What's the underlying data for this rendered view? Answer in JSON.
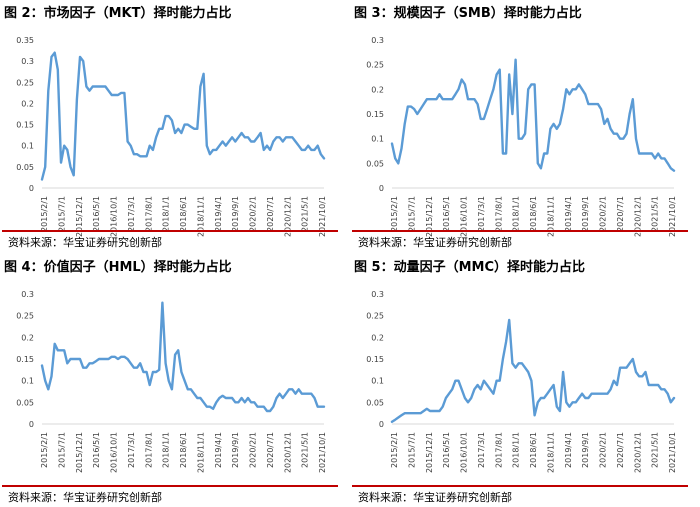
{
  "colors": {
    "line": "#5b9bd5",
    "rule": "#c00000",
    "axis": "#d9d9d9",
    "text": "#404040"
  },
  "chart_data": [
    {
      "type": "line",
      "title": "图 2：市场因子（MKT）择时能力占比",
      "source": "资料来源：华宝证券研究创新部",
      "ylim": [
        0,
        0.35
      ],
      "yticks": [
        "0",
        "0.05",
        "0.1",
        "0.15",
        "0.2",
        "0.25",
        "0.3",
        "0.35"
      ],
      "xticks": [
        "2015/2/1",
        "2015/7/1",
        "2015/12/1",
        "2016/5/1",
        "2016/10/1",
        "2017/3/1",
        "2017/8/1",
        "2018/1/1",
        "2018/6/1",
        "2018/11/1",
        "2019/4/1",
        "2019/9/1",
        "2020/2/1",
        "2020/7/1",
        "2020/12/1",
        "2021/5/1",
        "2021/10/1"
      ],
      "series": [
        {
          "values": [
            0.02,
            0.05,
            0.23,
            0.31,
            0.32,
            0.28,
            0.06,
            0.1,
            0.09,
            0.05,
            0.03,
            0.21,
            0.31,
            0.3,
            0.24,
            0.23,
            0.24,
            0.24,
            0.24,
            0.24,
            0.24,
            0.23,
            0.22,
            0.22,
            0.22,
            0.225,
            0.225,
            0.11,
            0.1,
            0.08,
            0.08,
            0.075,
            0.075,
            0.075,
            0.1,
            0.09,
            0.12,
            0.14,
            0.14,
            0.17,
            0.17,
            0.16,
            0.13,
            0.14,
            0.13,
            0.15,
            0.15,
            0.145,
            0.14,
            0.14,
            0.24,
            0.27,
            0.1,
            0.08,
            0.09,
            0.09,
            0.1,
            0.11,
            0.1,
            0.11,
            0.12,
            0.11,
            0.12,
            0.13,
            0.12,
            0.12,
            0.11,
            0.11,
            0.12,
            0.13,
            0.09,
            0.1,
            0.09,
            0.11,
            0.12,
            0.12,
            0.11,
            0.12,
            0.12,
            0.12,
            0.11,
            0.1,
            0.09,
            0.09,
            0.1,
            0.09,
            0.09,
            0.1,
            0.08,
            0.07
          ]
        }
      ]
    },
    {
      "type": "line",
      "title": "图 3：规模因子（SMB）择时能力占比",
      "source": "资料来源：华宝证券研究创新部",
      "ylim": [
        0,
        0.3
      ],
      "yticks": [
        "0",
        "0.05",
        "0.1",
        "0.15",
        "0.2",
        "0.25",
        "0.3"
      ],
      "xticks": [
        "2015/2/1",
        "2015/7/1",
        "2015/12/1",
        "2016/5/1",
        "2016/10/1",
        "2017/3/1",
        "2017/8/1",
        "2018/1/1",
        "2018/6/1",
        "2018/11/1",
        "2019/4/1",
        "2019/9/1",
        "2020/2/1",
        "2020/7/1",
        "2020/12/1",
        "2021/5/1",
        "2021/10/1"
      ],
      "series": [
        {
          "values": [
            0.09,
            0.06,
            0.05,
            0.08,
            0.13,
            0.165,
            0.165,
            0.16,
            0.15,
            0.16,
            0.17,
            0.18,
            0.18,
            0.18,
            0.18,
            0.19,
            0.18,
            0.18,
            0.18,
            0.18,
            0.19,
            0.2,
            0.22,
            0.21,
            0.18,
            0.18,
            0.18,
            0.17,
            0.14,
            0.14,
            0.16,
            0.18,
            0.2,
            0.23,
            0.24,
            0.07,
            0.07,
            0.23,
            0.15,
            0.26,
            0.1,
            0.1,
            0.11,
            0.2,
            0.21,
            0.21,
            0.05,
            0.04,
            0.07,
            0.07,
            0.12,
            0.13,
            0.12,
            0.13,
            0.16,
            0.2,
            0.19,
            0.2,
            0.2,
            0.21,
            0.2,
            0.19,
            0.17,
            0.17,
            0.17,
            0.17,
            0.16,
            0.13,
            0.14,
            0.12,
            0.11,
            0.11,
            0.1,
            0.1,
            0.11,
            0.15,
            0.18,
            0.1,
            0.07,
            0.07,
            0.07,
            0.07,
            0.07,
            0.06,
            0.07,
            0.06,
            0.06,
            0.05,
            0.04,
            0.035
          ]
        }
      ]
    },
    {
      "type": "line",
      "title": "图 4：价值因子（HML）择时能力占比",
      "source": "资料来源：华宝证券研究创新部",
      "ylim": [
        0,
        0.3
      ],
      "yticks": [
        "0",
        "0.05",
        "0.1",
        "0.15",
        "0.2",
        "0.25",
        "0.3"
      ],
      "xticks": [
        "2015/2/1",
        "2015/7/1",
        "2015/12/1",
        "2016/5/1",
        "2016/10/1",
        "2017/3/1",
        "2017/8/1",
        "2018/1/1",
        "2018/6/1",
        "2018/11/1",
        "2019/4/1",
        "2019/9/1",
        "2020/2/1",
        "2020/7/1",
        "2020/12/1",
        "2021/5/1",
        "2021/10/1"
      ],
      "series": [
        {
          "values": [
            0.135,
            0.1,
            0.08,
            0.11,
            0.185,
            0.17,
            0.17,
            0.17,
            0.14,
            0.15,
            0.15,
            0.15,
            0.15,
            0.13,
            0.13,
            0.14,
            0.14,
            0.145,
            0.15,
            0.15,
            0.15,
            0.15,
            0.155,
            0.155,
            0.15,
            0.155,
            0.155,
            0.15,
            0.14,
            0.13,
            0.13,
            0.14,
            0.12,
            0.12,
            0.09,
            0.12,
            0.12,
            0.125,
            0.28,
            0.14,
            0.1,
            0.08,
            0.16,
            0.17,
            0.12,
            0.1,
            0.08,
            0.08,
            0.07,
            0.06,
            0.06,
            0.05,
            0.04,
            0.04,
            0.035,
            0.05,
            0.06,
            0.065,
            0.06,
            0.06,
            0.06,
            0.05,
            0.05,
            0.06,
            0.05,
            0.06,
            0.05,
            0.05,
            0.04,
            0.04,
            0.04,
            0.03,
            0.03,
            0.04,
            0.06,
            0.07,
            0.06,
            0.07,
            0.08,
            0.08,
            0.07,
            0.08,
            0.07,
            0.07,
            0.07,
            0.07,
            0.06,
            0.04,
            0.04,
            0.04
          ]
        }
      ]
    },
    {
      "type": "line",
      "title": "图 5：动量因子（MMC）择时能力占比",
      "source": "资料来源：华宝证券研究创新部",
      "ylim": [
        0,
        0.3
      ],
      "yticks": [
        "0",
        "0.05",
        "0.1",
        "0.15",
        "0.2",
        "0.25",
        "0.3"
      ],
      "xticks": [
        "2015/2/1",
        "2015/7/1",
        "2015/12/1",
        "2016/5/1",
        "2016/10/1",
        "2017/3/1",
        "2017/8/1",
        "2018/1/1",
        "2018/6/1",
        "2018/11/1",
        "2019/4/1",
        "2019/9/1",
        "2020/2/1",
        "2020/7/1",
        "2020/12/1",
        "2021/5/1",
        "2021/10/1"
      ],
      "series": [
        {
          "values": [
            0.005,
            0.01,
            0.015,
            0.02,
            0.025,
            0.025,
            0.025,
            0.025,
            0.025,
            0.025,
            0.03,
            0.035,
            0.03,
            0.03,
            0.03,
            0.03,
            0.04,
            0.06,
            0.07,
            0.08,
            0.1,
            0.1,
            0.08,
            0.06,
            0.05,
            0.06,
            0.08,
            0.09,
            0.08,
            0.1,
            0.09,
            0.08,
            0.07,
            0.1,
            0.1,
            0.15,
            0.19,
            0.24,
            0.14,
            0.13,
            0.14,
            0.14,
            0.13,
            0.12,
            0.1,
            0.02,
            0.05,
            0.06,
            0.06,
            0.07,
            0.08,
            0.09,
            0.04,
            0.03,
            0.12,
            0.05,
            0.04,
            0.05,
            0.05,
            0.06,
            0.07,
            0.06,
            0.06,
            0.07,
            0.07,
            0.07,
            0.07,
            0.07,
            0.07,
            0.08,
            0.1,
            0.09,
            0.13,
            0.13,
            0.13,
            0.14,
            0.15,
            0.12,
            0.11,
            0.11,
            0.12,
            0.09,
            0.09,
            0.09,
            0.09,
            0.08,
            0.08,
            0.07,
            0.05,
            0.06
          ]
        }
      ]
    }
  ]
}
